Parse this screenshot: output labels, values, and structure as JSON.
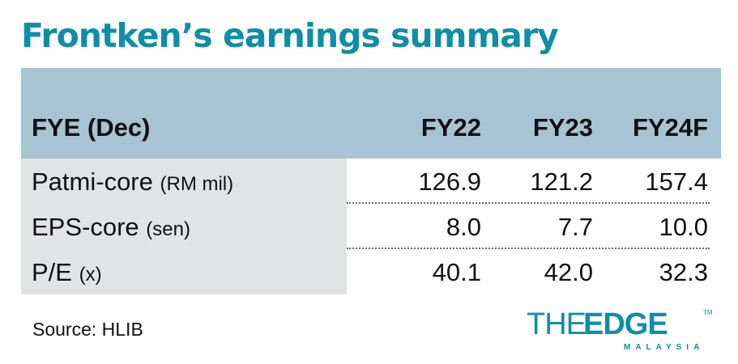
{
  "title": "Frontken’s earnings summary",
  "chart_data": {
    "type": "table",
    "title": "Frontken’s earnings summary",
    "columns": [
      "FYE (Dec)",
      "FY22",
      "FY23",
      "FY24F"
    ],
    "rows": [
      {
        "label": "Patmi-core",
        "unit": "(RM mil)",
        "values": [
          "126.9",
          "121.2",
          "157.4"
        ]
      },
      {
        "label": "EPS-core",
        "unit": "(sen)",
        "values": [
          "8.0",
          "7.7",
          "10.0"
        ]
      },
      {
        "label": "P/E",
        "unit": "(x)",
        "values": [
          "40.1",
          "42.0",
          "32.3"
        ]
      }
    ]
  },
  "source": "Source: HLIB",
  "logo": {
    "the": "THE",
    "edge": "EDGE",
    "sub": "MALAYSIA",
    "tm": "TM"
  },
  "colors": {
    "title": "#0f8ea8",
    "header_band": "#a7c4d3",
    "label_column": "#e2e3e4"
  }
}
